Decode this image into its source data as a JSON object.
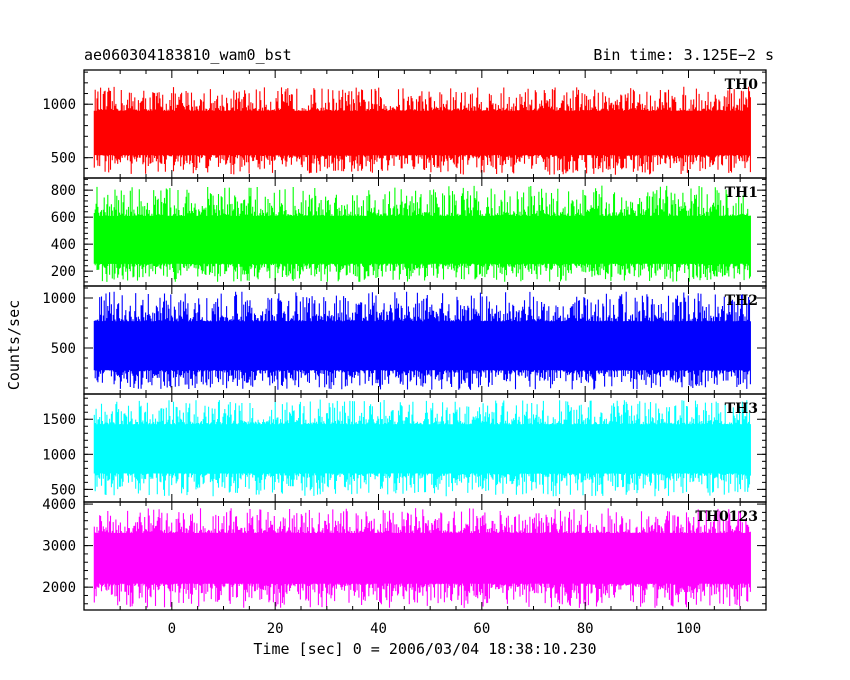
{
  "header": {
    "left_title": "ae060304183810_wam0_bst",
    "right_title": "Bin time: 3.125E−2 s"
  },
  "chart_data": {
    "type": "line",
    "title": "ae060304183810_wam0_bst",
    "subtitle": "Bin time: 3.125E−2 s",
    "xlabel": "Time [sec] 0 = 2006/03/04 18:38:10.230",
    "ylabel": "Counts/sec",
    "xlim": [
      -17,
      115
    ],
    "x_ticks": [
      0,
      20,
      40,
      60,
      80,
      100
    ],
    "data_xrange": [
      -15,
      112
    ],
    "bin_time_s": 0.03125,
    "legend": "none",
    "grid": false,
    "panels": [
      {
        "name": "TH0",
        "color": "#ff0000",
        "ylim": [
          310,
          1320
        ],
        "y_ticks": [
          500,
          1000
        ],
        "y_tick_labels": [
          "500",
          "1000"
        ],
        "mean": 750,
        "band_low": 340,
        "band_high": 1200
      },
      {
        "name": "TH1",
        "color": "#00ff00",
        "ylim": [
          90,
          890
        ],
        "y_ticks": [
          200,
          400,
          600,
          800
        ],
        "y_tick_labels": [
          "200",
          "400",
          "600",
          "800"
        ],
        "mean": 420,
        "band_low": 120,
        "band_high": 870
      },
      {
        "name": "TH2",
        "color": "#0000ff",
        "ylim": [
          40,
          1120
        ],
        "y_ticks": [
          500,
          1000
        ],
        "y_tick_labels": [
          "500",
          "1000"
        ],
        "mean": 520,
        "band_low": 80,
        "band_high": 1110
      },
      {
        "name": "TH3",
        "color": "#00ffff",
        "ylim": [
          320,
          1860
        ],
        "y_ticks": [
          500,
          1000,
          1500
        ],
        "y_tick_labels": [
          "500",
          "1000",
          "1500"
        ],
        "mean": 1130,
        "band_low": 400,
        "band_high": 1840
      },
      {
        "name": "TH0123",
        "color": "#ff00ff",
        "ylim": [
          1450,
          4050
        ],
        "y_ticks": [
          2000,
          3000,
          4000
        ],
        "y_tick_labels": [
          "2000",
          "3000",
          "4000"
        ],
        "mean": 2800,
        "band_low": 1500,
        "band_high": 4000
      }
    ]
  }
}
